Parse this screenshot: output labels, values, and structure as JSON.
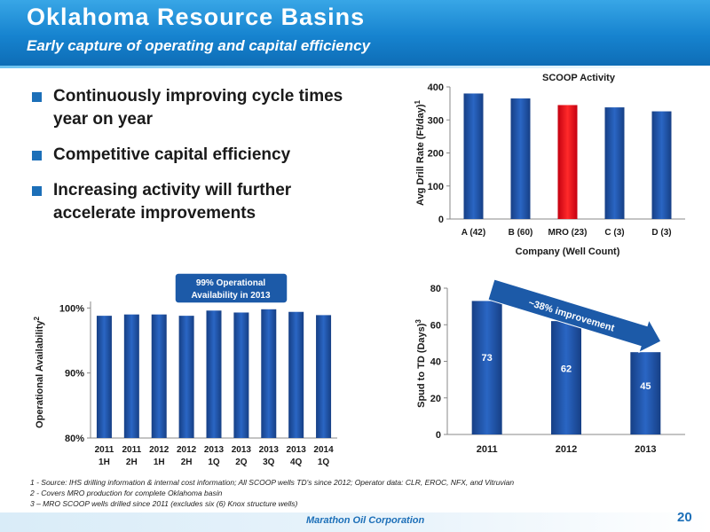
{
  "header": {
    "title": "Oklahoma Resource Basins",
    "subtitle": "Early capture of operating and capital efficiency"
  },
  "bullets": [
    "Continuously improving cycle times year on year",
    "Competitive capital efficiency",
    "Increasing activity will further accelerate improvements"
  ],
  "chart_data": [
    {
      "id": "scoop",
      "type": "bar",
      "title": "SCOOP Activity",
      "xlabel": "Company (Well Count)",
      "ylabel": "Avg Drill Rate (Ft/day)",
      "ylabel_superscript": "1",
      "categories": [
        "A (42)",
        "B (60)",
        "MRO (23)",
        "C (3)",
        "D (3)"
      ],
      "values": [
        380,
        365,
        345,
        338,
        326
      ],
      "colors": [
        "#1c4f9c",
        "#1c4f9c",
        "#e8101a",
        "#1c4f9c",
        "#1c4f9c"
      ],
      "ylim": [
        0,
        400
      ],
      "yticks": [
        0,
        100,
        200,
        300,
        400
      ],
      "grid": false,
      "legend": "none"
    },
    {
      "id": "availability",
      "type": "bar",
      "title": "",
      "xlabel": "",
      "ylabel": "Operational Availability",
      "ylabel_superscript": "2",
      "categories": [
        [
          "2011",
          "1H"
        ],
        [
          "2011",
          "2H"
        ],
        [
          "2012",
          "1H"
        ],
        [
          "2012",
          "2H"
        ],
        [
          "2013",
          "1Q"
        ],
        [
          "2013",
          "2Q"
        ],
        [
          "2013",
          "3Q"
        ],
        [
          "2013",
          "4Q"
        ],
        [
          "2014",
          "1Q"
        ]
      ],
      "values": [
        98.8,
        99.0,
        99.0,
        98.8,
        99.6,
        99.3,
        99.8,
        99.4,
        98.9
      ],
      "ylim": [
        80,
        101
      ],
      "yticks": [
        80,
        90,
        100
      ],
      "ytick_labels": [
        "80%",
        "90%",
        "100%"
      ],
      "callout": [
        "99% Operational",
        "Availability in 2013"
      ],
      "grid": false,
      "legend": "none"
    },
    {
      "id": "spud",
      "type": "bar",
      "title": "",
      "xlabel": "",
      "ylabel": "Spud to TD (Days)",
      "ylabel_superscript": "3",
      "categories": [
        "2011",
        "2012",
        "2013"
      ],
      "values": [
        73,
        62,
        45
      ],
      "data_labels": [
        "73",
        "62",
        "45"
      ],
      "ylim": [
        0,
        80
      ],
      "yticks": [
        0,
        20,
        40,
        60,
        80
      ],
      "annotation": "~38% improvement",
      "grid": false,
      "legend": "none"
    }
  ],
  "footnotes": [
    "1 - Source: IHS drilling information & internal cost information; All SCOOP wells TD's since 2012; Operator data: CLR, EROC, NFX, and Vitruvian",
    "2 - Covers MRO production for complete Oklahoma basin",
    "3 – MRO SCOOP wells drilled since 2011 (excludes six (6) Knox structure wells)"
  ],
  "footer": {
    "company": "Marathon Oil Corporation",
    "page_number": "20"
  }
}
